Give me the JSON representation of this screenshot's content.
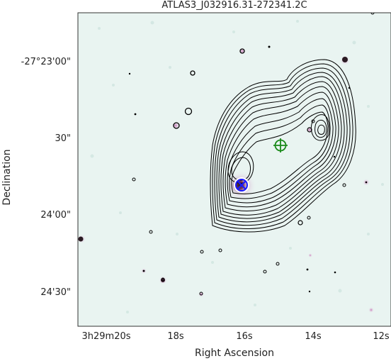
{
  "title": "ATLAS3_J032916.31-272341.2C",
  "axes": {
    "xlabel": "Right Ascension",
    "ylabel": "Declination",
    "xticks": [
      "3h29m20s",
      "18s",
      "16s",
      "14s",
      "12s"
    ],
    "yticks": [
      "-27°23'00\"",
      "30\"",
      "24'00\"",
      "24'30\""
    ]
  },
  "colors": {
    "background": "#e9f4f1",
    "contour": "#000000",
    "ir_marker": "#1a1aff",
    "radio_marker": "#1a8a1a",
    "star_halo": "#c86bb3"
  },
  "markers": {
    "infrared_host": "blue-x-circle",
    "radio_centroid": "green-crosshair-circle"
  }
}
